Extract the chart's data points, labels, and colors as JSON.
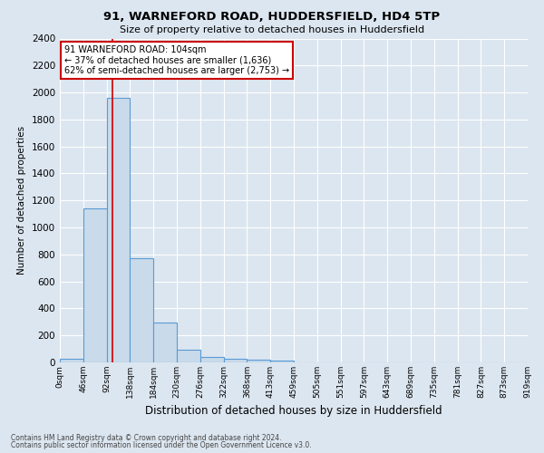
{
  "title1": "91, WARNEFORD ROAD, HUDDERSFIELD, HD4 5TP",
  "title2": "Size of property relative to detached houses in Huddersfield",
  "xlabel": "Distribution of detached houses by size in Huddersfield",
  "ylabel": "Number of detached properties",
  "bin_labels": [
    "0sqm",
    "46sqm",
    "92sqm",
    "138sqm",
    "184sqm",
    "230sqm",
    "276sqm",
    "322sqm",
    "368sqm",
    "413sqm",
    "459sqm",
    "505sqm",
    "551sqm",
    "597sqm",
    "643sqm",
    "689sqm",
    "735sqm",
    "781sqm",
    "827sqm",
    "873sqm",
    "919sqm"
  ],
  "bar_heights": [
    25,
    1140,
    1960,
    770,
    295,
    95,
    38,
    30,
    18,
    14,
    0,
    0,
    0,
    0,
    0,
    0,
    0,
    0,
    0,
    0
  ],
  "bar_color": "#c9daea",
  "bar_edge_color": "#5b9bd5",
  "ylim": [
    0,
    2400
  ],
  "yticks": [
    0,
    200,
    400,
    600,
    800,
    1000,
    1200,
    1400,
    1600,
    1800,
    2000,
    2200,
    2400
  ],
  "red_line_x": 2.26,
  "annotation_line1": "91 WARNEFORD ROAD: 104sqm",
  "annotation_line2": "← 37% of detached houses are smaller (1,636)",
  "annotation_line3": "62% of semi-detached houses are larger (2,753) →",
  "footer1": "Contains HM Land Registry data © Crown copyright and database right 2024.",
  "footer2": "Contains public sector information licensed under the Open Government Licence v3.0.",
  "bg_color": "#dce6f0",
  "plot_bg_color": "#dce6f0",
  "grid_color": "#b0c4d8"
}
